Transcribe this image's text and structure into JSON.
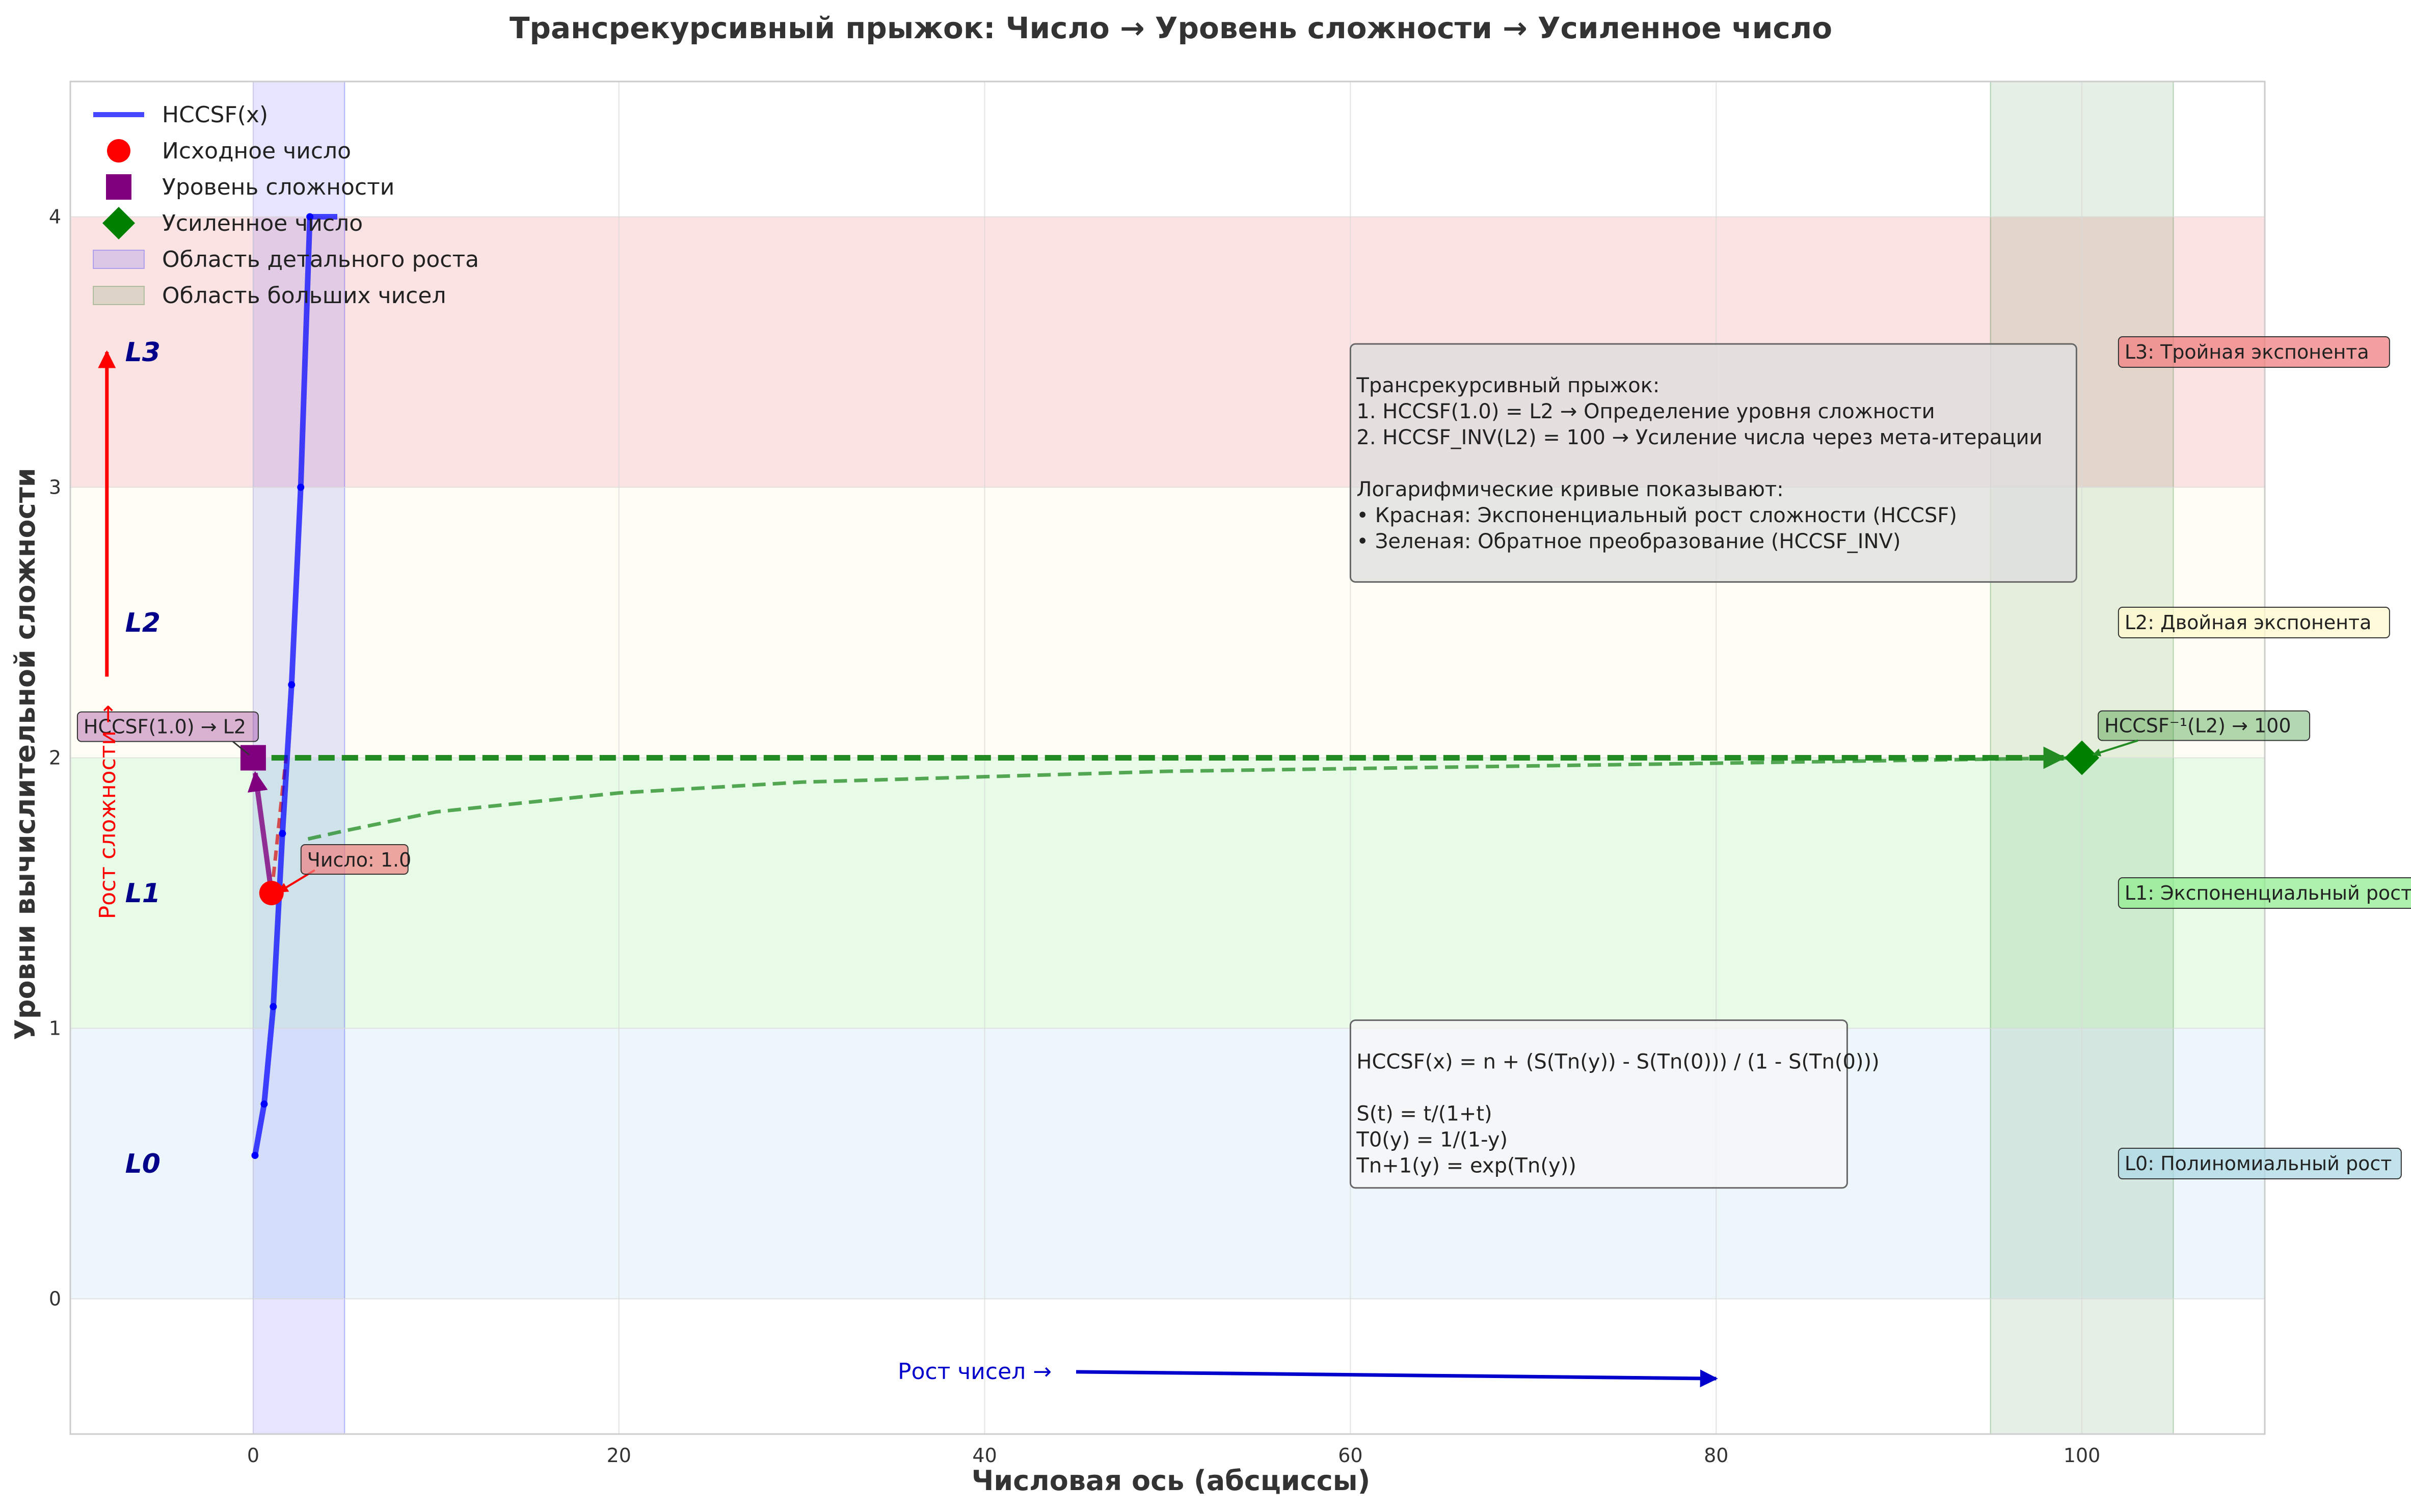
{
  "chart_data": {
    "type": "line",
    "title": "Трансрекурсивный прыжок: Число → Уровень сложности → Усиленное число",
    "xlabel": "Числовая ось (абсциссы)",
    "ylabel": "Уровни вычислительной сложности",
    "xlim": [
      -10,
      110
    ],
    "ylim": [
      -0.5,
      4.5
    ],
    "xticks": [
      0,
      20,
      40,
      60,
      80,
      100
    ],
    "yticks": [
      0,
      1,
      2,
      3,
      4
    ],
    "grid": true,
    "legend_position": "top-left",
    "level_bands": [
      {
        "y0": 0,
        "y1": 1,
        "color": "#add8e6",
        "level": "L0",
        "label": "L0: Полиномиальный рост",
        "box_color": "#add8e6"
      },
      {
        "y0": 1,
        "y1": 2,
        "color": "#90ee90",
        "level": "L1",
        "label": "L1: Экспоненциальный рост",
        "box_color": "#90ee90"
      },
      {
        "y0": 2,
        "y1": 3,
        "color": "#fffacd",
        "level": "L2",
        "label": "L2: Двойная экспонента",
        "box_color": "#fffacd"
      },
      {
        "y0": 3,
        "y1": 4,
        "color": "#f08080",
        "level": "L3",
        "label": "L3: Тройная экспонента",
        "box_color": "#f08080"
      }
    ],
    "x_regions": [
      {
        "x0": 0,
        "x1": 5,
        "color": "#0000ff",
        "legend": "Область детального роста"
      },
      {
        "x0": 95,
        "x1": 105,
        "color": "#006400",
        "legend": "Область больших чисел"
      }
    ],
    "series": [
      {
        "name": "HCCSF(x)",
        "color": "#0000ff",
        "x": [
          0.1,
          0.6,
          1.1,
          1.6,
          2.1,
          2.6,
          3.1,
          3.6,
          4.1,
          4.6
        ],
        "y": [
          0.53,
          0.72,
          1.08,
          1.72,
          2.27,
          3.0,
          4.0,
          4.0,
          4.0,
          4.0
        ]
      },
      {
        "name": "Исходное число",
        "kind": "point",
        "marker": "circle",
        "color": "#ff0000",
        "x": [
          1.0
        ],
        "y": [
          1.5
        ]
      },
      {
        "name": "Уровень сложности",
        "kind": "point",
        "marker": "square",
        "color": "#800080",
        "x": [
          0.0
        ],
        "y": [
          2.0
        ]
      },
      {
        "name": "Усиленное число",
        "kind": "point",
        "marker": "diamond",
        "color": "#008000",
        "x": [
          100
        ],
        "y": [
          2.0
        ]
      }
    ],
    "curves": {
      "red_log": {
        "x": [
          1.0,
          1.2,
          1.4,
          1.6,
          1.8
        ],
        "y": [
          1.5,
          1.62,
          1.75,
          1.88,
          2.0
        ],
        "color": "#d62728"
      },
      "green_log": {
        "x": [
          3,
          5,
          10,
          20,
          30,
          40,
          50,
          60,
          70,
          80,
          90,
          100
        ],
        "y": [
          1.7,
          1.73,
          1.8,
          1.87,
          1.91,
          1.93,
          1.95,
          1.96,
          1.97,
          1.98,
          1.99,
          2.0
        ],
        "color": "#228b22"
      },
      "green_dash": {
        "x": [
          1.0,
          99.0
        ],
        "y": [
          2.0,
          2.0
        ]
      },
      "purple_arrow": {
        "x": [
          1.0,
          0.0
        ],
        "y": [
          1.5,
          2.0
        ]
      }
    },
    "annotations": {
      "input_number": "Число: 1.0",
      "level_def": "HCCSF(1.0) → L2",
      "amplified": "HCCSF⁻¹(L2) → 100",
      "number_growth": "Рост чисел →",
      "complexity_growth": "Рост сложности →"
    },
    "info_box": [
      "Трансрекурсивный прыжок:",
      "1. HCCSF(1.0) = L2  → Определение уровня сложности",
      "2. HCCSF_INV(L2) = 100 → Усиление числа через мета-итерации",
      "",
      "Логарифмические кривые показывают:",
      "• Красная: Экспоненциальный рост сложности (HCCSF)",
      "• Зеленая: Обратное преобразование (HCCSF_INV)"
    ],
    "formula_box": [
      "HCCSF(x) = n + (S(Tn(y)) - S(Tn(0))) / (1 - S(Tn(0)))",
      "",
      "S(t) = t/(1+t)",
      "T0(y) = 1/(1-y)",
      "Tn+1(y) = exp(Tn(y))"
    ]
  }
}
